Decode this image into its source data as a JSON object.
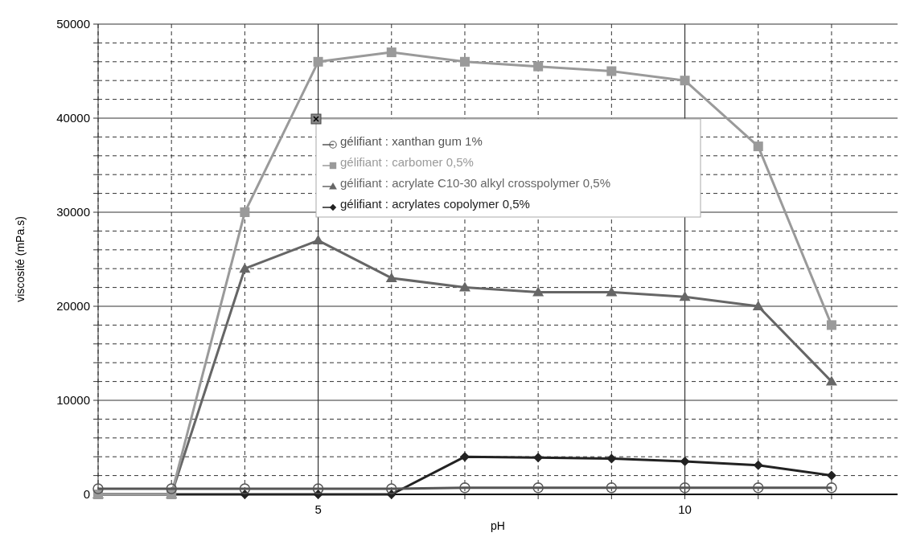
{
  "chart_data": {
    "type": "line",
    "xlabel": "pH",
    "ylabel": "viscosité (mPa.s)",
    "x": [
      2,
      3,
      4,
      5,
      6,
      7,
      8,
      9,
      10,
      11,
      12
    ],
    "xlim": [
      2,
      12.9
    ],
    "xticks": [
      {
        "value": 2,
        "label": null
      },
      {
        "value": 3,
        "label": null
      },
      {
        "value": 4,
        "label": null
      },
      5,
      {
        "value": 6,
        "label": null
      },
      {
        "value": 7,
        "label": null
      },
      {
        "value": 8,
        "label": null
      },
      {
        "value": 9,
        "label": null
      },
      10,
      {
        "value": 11,
        "label": null
      },
      {
        "value": 12,
        "label": null
      }
    ],
    "ylim": [
      0,
      50000
    ],
    "yticks": [
      0,
      {
        "value": 2000,
        "label": null
      },
      {
        "value": 4000,
        "label": null
      },
      {
        "value": 6000,
        "label": null
      },
      {
        "value": 8000,
        "label": null
      },
      10000,
      {
        "value": 12000,
        "label": null
      },
      {
        "value": 14000,
        "label": null
      },
      {
        "value": 16000,
        "label": null
      },
      {
        "value": 18000,
        "label": null
      },
      20000,
      {
        "value": 22000,
        "label": null
      },
      {
        "value": 24000,
        "label": null
      },
      {
        "value": 26000,
        "label": null
      },
      {
        "value": 28000,
        "label": null
      },
      30000,
      {
        "value": 32000,
        "label": null
      },
      {
        "value": 34000,
        "label": null
      },
      {
        "value": 36000,
        "label": null
      },
      {
        "value": 38000,
        "label": null
      },
      40000,
      {
        "value": 42000,
        "label": null
      },
      {
        "value": 44000,
        "label": null
      },
      {
        "value": 46000,
        "label": null
      },
      {
        "value": 48000,
        "label": null
      },
      50000
    ],
    "grid": true,
    "legend": "top",
    "series": [
      {
        "name": "gélifiant : xanthan gum 1%",
        "color": "#555555",
        "marker": "circle",
        "values": [
          600,
          600,
          600,
          600,
          600,
          700,
          700,
          700,
          700,
          700,
          700
        ]
      },
      {
        "name": "gélifiant : carbomer 0,5%",
        "color": "#9a9a9a",
        "marker": "square",
        "values": [
          0,
          0,
          30000,
          46000,
          47000,
          46000,
          45500,
          45000,
          44000,
          37000,
          18000
        ]
      },
      {
        "name": "gélifiant : acrylate C10-30 alkyl crosspolymer 0,5%",
        "color": "#666666",
        "marker": "triangle",
        "values": [
          0,
          0,
          24000,
          27000,
          23000,
          22000,
          21500,
          21500,
          21000,
          20000,
          12000
        ]
      },
      {
        "name": "gélifiant : acrylates copolymer 0,5%",
        "color": "#222222",
        "marker": "diamond",
        "values": [
          0,
          0,
          0,
          0,
          0,
          4000,
          3900,
          3800,
          3500,
          3100,
          2000
        ]
      }
    ]
  }
}
